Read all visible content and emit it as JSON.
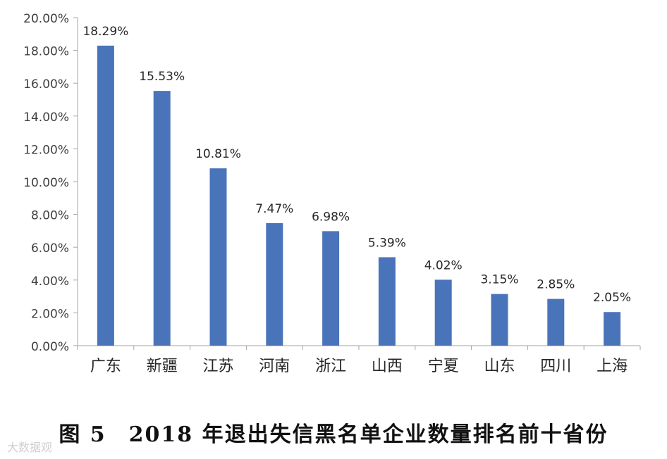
{
  "chart_data": {
    "type": "bar",
    "categories": [
      "广东",
      "新疆",
      "江苏",
      "河南",
      "浙江",
      "山西",
      "宁夏",
      "山东",
      "四川",
      "上海"
    ],
    "values": [
      18.29,
      15.53,
      10.81,
      7.47,
      6.98,
      5.39,
      4.02,
      3.15,
      2.85,
      2.05
    ],
    "data_labels": [
      "18.29%",
      "15.53%",
      "10.81%",
      "7.47%",
      "6.98%",
      "5.39%",
      "4.02%",
      "3.15%",
      "2.85%",
      "2.05%"
    ],
    "y_ticks": [
      0,
      2,
      4,
      6,
      8,
      10,
      12,
      14,
      16,
      18,
      20
    ],
    "y_tick_labels": [
      "0.00%",
      "2.00%",
      "4.00%",
      "6.00%",
      "8.00%",
      "10.00%",
      "12.00%",
      "14.00%",
      "16.00%",
      "18.00%",
      "20.00%"
    ],
    "ylim": [
      0,
      20
    ],
    "title": "",
    "xlabel": "",
    "ylabel": "",
    "grid": false,
    "bar_color": "#4A74BA"
  },
  "caption": "图 5　2018 年退出失信黑名单企业数量排名前十省份",
  "watermark": "大数据观"
}
